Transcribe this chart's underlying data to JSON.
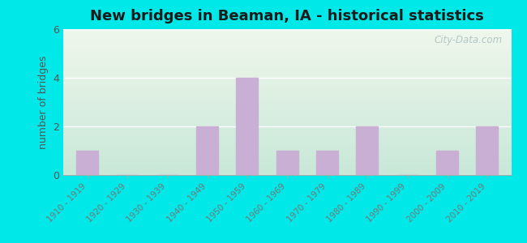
{
  "title": "New bridges in Beaman, IA - historical statistics",
  "ylabel": "number of bridges",
  "categories": [
    "1910 - 1919",
    "1920 - 1929",
    "1930 - 1939",
    "1940 - 1949",
    "1950 - 1959",
    "1960 - 1969",
    "1970 - 1979",
    "1980 - 1989",
    "1990 - 1999",
    "2000 - 2009",
    "2010 - 2019"
  ],
  "values": [
    1,
    0,
    0,
    2,
    4,
    1,
    1,
    2,
    0,
    1,
    2
  ],
  "bar_color": "#c9afd4",
  "bar_edge_color": "#c9afd4",
  "ylim": [
    0,
    6
  ],
  "yticks": [
    0,
    2,
    4,
    6
  ],
  "background_outer": "#00e8e8",
  "background_inner_top": "#f0f7ec",
  "background_inner_bottom": "#c8e8d8",
  "grid_color": "#ffffff",
  "title_fontsize": 13,
  "title_color": "#1a1a1a",
  "label_color": "#555555",
  "watermark_text": "City-Data.com",
  "watermark_color": "#a8bfc0",
  "tick_label_color": "#777777"
}
